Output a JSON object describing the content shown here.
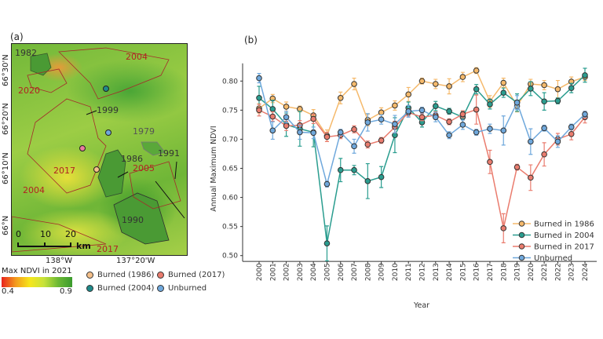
{
  "map_panel": {
    "label": "(a)",
    "lat_labels": [
      "66°30'N",
      "66°20'N",
      "66°10'N",
      "66°N"
    ],
    "lon_labels": [
      "138°W",
      "137°20'W"
    ],
    "fire_labels": [
      {
        "text": "1982",
        "color": "#333333"
      },
      {
        "text": "2004",
        "color": "#b22222"
      },
      {
        "text": "2020",
        "color": "#b22222"
      },
      {
        "text": "1999",
        "color": "#333333"
      },
      {
        "text": "1979",
        "color": "#555555"
      },
      {
        "text": "1986",
        "color": "#333333"
      },
      {
        "text": "1991",
        "color": "#333333"
      },
      {
        "text": "2005",
        "color": "#b22222"
      },
      {
        "text": "2017",
        "color": "#b22222"
      },
      {
        "text": "2004",
        "color": "#b22222"
      },
      {
        "text": "1990",
        "color": "#333333"
      },
      {
        "text": "2017",
        "color": "#b22222"
      }
    ],
    "scale_bar": {
      "ticks": [
        "0",
        "10",
        "20"
      ],
      "unit": "km"
    },
    "colorbar": {
      "title": "Max NDVI in 2021",
      "min_label": "0.4",
      "max_label": "0.9"
    },
    "legend": [
      {
        "label": "Burned (1986)",
        "color": "#f5b96b"
      },
      {
        "label": "Burned (2017)",
        "color": "#ea7c6e"
      },
      {
        "label": "Burned (2004)",
        "color": "#2a9d8f"
      },
      {
        "label": "Unburned",
        "color": "#6fa8dc"
      }
    ]
  },
  "chart_data": {
    "type": "line",
    "panel_label": "(b)",
    "xlabel": "Year",
    "ylabel": "Annual Maximum NDVI",
    "ylim": [
      0.49,
      0.825
    ],
    "yticks": [
      0.5,
      0.55,
      0.6,
      0.65,
      0.7,
      0.75,
      0.8
    ],
    "ytick_labels": [
      "0.50",
      "0.55",
      "0.60",
      "0.65",
      "0.70",
      "0.75",
      "0.80"
    ],
    "x": [
      2000,
      2001,
      2002,
      2003,
      2004,
      2005,
      2006,
      2007,
      2008,
      2009,
      2010,
      2011,
      2012,
      2013,
      2014,
      2015,
      2016,
      2017,
      2018,
      2019,
      2020,
      2021,
      2022,
      2023,
      2024
    ],
    "xtick_labels": [
      "2000",
      "2001",
      "2002",
      "2003",
      "2004",
      "2005",
      "2006",
      "2007",
      "2008",
      "2009",
      "2010",
      "2011",
      "2012",
      "2013",
      "2014",
      "2015",
      "2016",
      "2017",
      "2018",
      "2019",
      "2020",
      "2021",
      "2022",
      "2023",
      "2024"
    ],
    "grid": false,
    "legend_position": "bottom-right",
    "series": [
      {
        "name": "Burned in 1986",
        "color": "#f5b96b",
        "values": [
          0.753,
          0.77,
          0.756,
          0.752,
          0.741,
          0.706,
          0.771,
          0.795,
          0.733,
          0.746,
          0.758,
          0.777,
          0.8,
          0.795,
          0.791,
          0.807,
          0.818,
          0.765,
          0.797,
          0.757,
          0.795,
          0.793,
          0.786,
          0.799,
          0.807
        ],
        "errors": [
          0.008,
          0.007,
          0.008,
          0.005,
          0.01,
          0.01,
          0.01,
          0.01,
          0.01,
          0.008,
          0.008,
          0.012,
          0.005,
          0.008,
          0.013,
          0.008,
          0.005,
          0.01,
          0.008,
          0.01,
          0.008,
          0.008,
          0.015,
          0.008,
          0.006
        ]
      },
      {
        "name": "Burned in 2004",
        "color": "#2a9d8f",
        "values": [
          0.771,
          0.752,
          0.725,
          0.718,
          0.712,
          0.521,
          0.647,
          0.647,
          0.628,
          0.635,
          0.707,
          0.754,
          0.729,
          0.757,
          0.748,
          0.738,
          0.786,
          0.76,
          0.78,
          0.763,
          0.787,
          0.765,
          0.766,
          0.788,
          0.81
        ],
        "errors": [
          0.02,
          0.015,
          0.02,
          0.03,
          0.025,
          0.03,
          0.02,
          0.008,
          0.03,
          0.018,
          0.03,
          0.01,
          0.008,
          0.008,
          0.005,
          0.01,
          0.008,
          0.008,
          0.008,
          0.015,
          0.012,
          0.015,
          0.005,
          0.008,
          0.012
        ]
      },
      {
        "name": "Burned in 2017",
        "color": "#ea7c6e",
        "values": [
          0.75,
          0.739,
          0.723,
          0.724,
          0.735,
          0.704,
          0.707,
          0.717,
          0.691,
          0.698,
          0.721,
          0.746,
          0.738,
          0.741,
          0.73,
          0.743,
          0.751,
          0.661,
          0.547,
          0.652,
          0.634,
          0.674,
          0.7,
          0.709,
          0.738
        ],
        "errors": [
          0.01,
          0.008,
          0.008,
          0.008,
          0.008,
          0.008,
          0.006,
          0.006,
          0.006,
          0.005,
          0.01,
          0.006,
          0.006,
          0.006,
          0.005,
          0.006,
          0.025,
          0.02,
          0.025,
          0.005,
          0.022,
          0.02,
          0.01,
          0.01,
          0.01
        ]
      },
      {
        "name": "Unburned",
        "color": "#6fa8dc",
        "values": [
          0.805,
          0.715,
          0.738,
          0.712,
          0.711,
          0.623,
          0.712,
          0.688,
          0.729,
          0.734,
          0.726,
          0.748,
          0.75,
          0.738,
          0.707,
          0.725,
          0.712,
          0.718,
          0.715,
          0.763,
          0.696,
          0.719,
          0.696,
          0.721,
          0.743
        ],
        "errors": [
          0.008,
          0.015,
          0.01,
          0.012,
          0.01,
          0.005,
          0.005,
          0.012,
          0.015,
          0.008,
          0.015,
          0.01,
          0.005,
          0.008,
          0.006,
          0.008,
          0.005,
          0.008,
          0.025,
          0.012,
          0.022,
          0.005,
          0.01,
          0.005,
          0.005
        ]
      }
    ]
  }
}
